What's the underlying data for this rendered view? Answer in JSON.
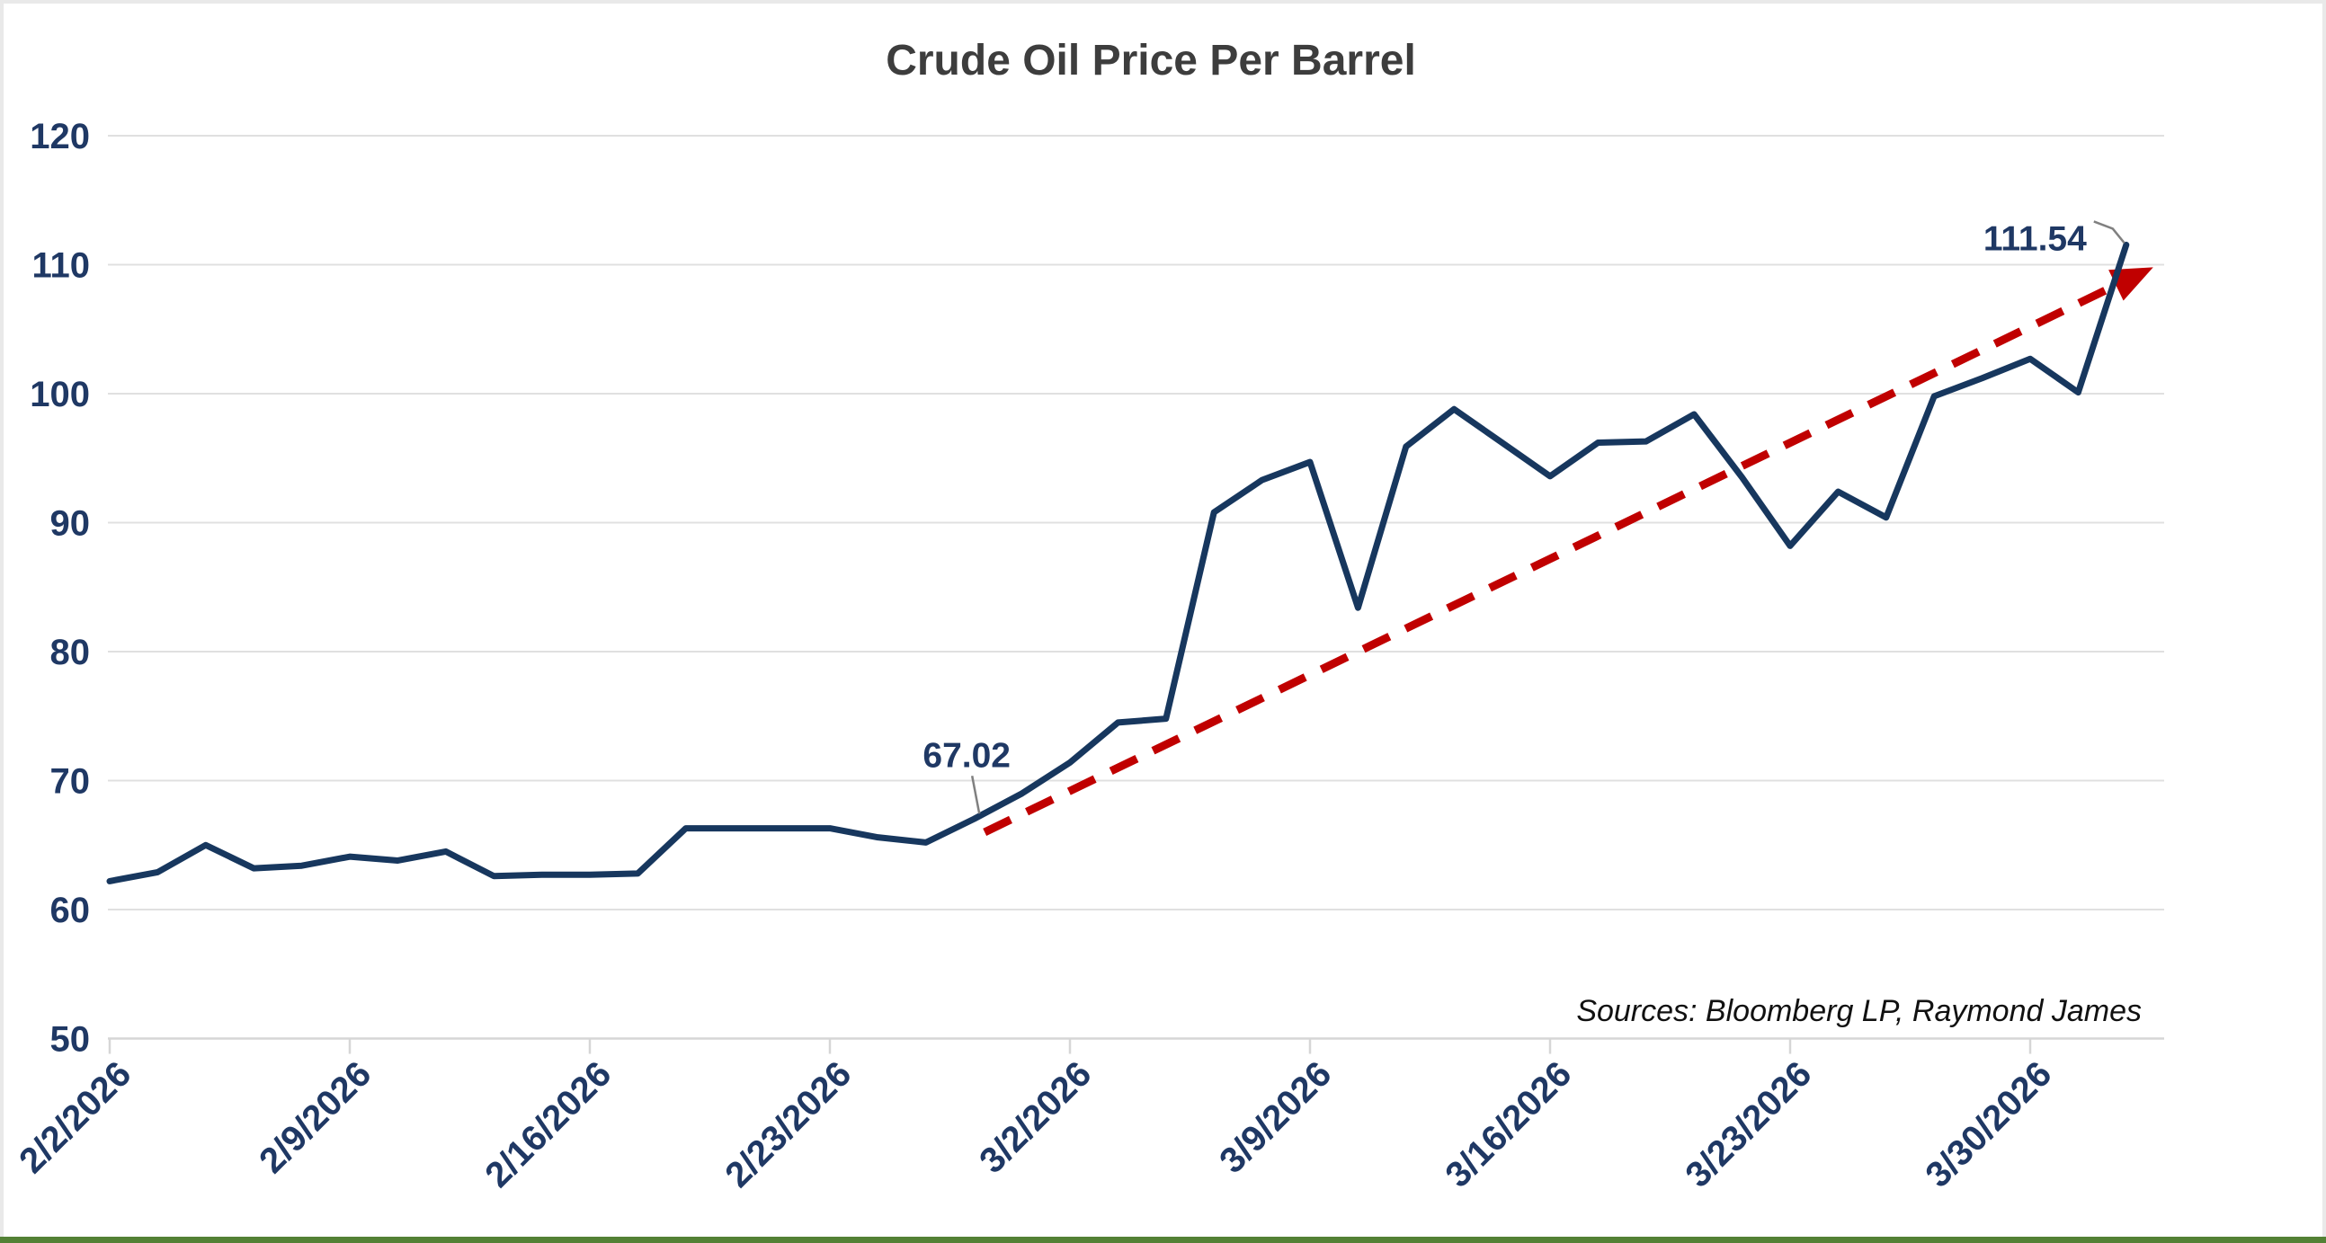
{
  "source_note": "Sources: Bloomberg LP, Raymond James",
  "colors": {
    "line": "#17375E",
    "labels": "#1F3864",
    "trend": "#C00000",
    "title": "#3d3d3d",
    "gridline": "#e0e0e0",
    "bottom_bar": "#538135"
  },
  "chart_data": {
    "type": "line",
    "title": "Crude Oil Price Per Barrel",
    "xlabel": "",
    "ylabel": "",
    "ylim": [
      50,
      120
    ],
    "ytick_interval": 10,
    "ytick_labels": [
      "50",
      "60",
      "70",
      "80",
      "90",
      "100",
      "110",
      "120"
    ],
    "grid": "horizontal",
    "legend": "none",
    "xtick_labels": [
      "2/2/2026",
      "2/9/2026",
      "2/16/2026",
      "2/23/2026",
      "3/2/2026",
      "3/9/2026",
      "3/16/2026",
      "3/23/2026",
      "3/30/2026"
    ],
    "x": [
      "2/2/2026",
      "2/3/2026",
      "2/4/2026",
      "2/5/2026",
      "2/6/2026",
      "2/9/2026",
      "2/10/2026",
      "2/11/2026",
      "2/12/2026",
      "2/13/2026",
      "2/16/2026",
      "2/17/2026",
      "2/18/2026",
      "2/19/2026",
      "2/20/2026",
      "2/23/2026",
      "2/24/2026",
      "2/25/2026",
      "2/26/2026",
      "2/27/2026",
      "3/2/2026",
      "3/3/2026",
      "3/4/2026",
      "3/5/2026",
      "3/6/2026",
      "3/9/2026",
      "3/10/2026",
      "3/11/2026",
      "3/12/2026",
      "3/13/2026",
      "3/16/2026",
      "3/17/2026",
      "3/18/2026",
      "3/19/2026",
      "3/20/2026",
      "3/23/2026",
      "3/24/2026",
      "3/25/2026",
      "3/26/2026",
      "3/27/2026",
      "3/30/2026",
      "3/31/2026",
      "4/1/2026"
    ],
    "series": [
      {
        "name": "Crude Oil Price Per Barrel",
        "values": [
          62.2,
          62.9,
          65.0,
          63.2,
          63.4,
          64.1,
          63.8,
          64.5,
          62.6,
          62.7,
          62.7,
          62.8,
          66.3,
          66.3,
          66.3,
          66.3,
          65.6,
          65.2,
          67.02,
          69.0,
          71.4,
          74.5,
          74.8,
          90.8,
          93.3,
          94.7,
          83.4,
          95.9,
          98.8,
          96.2,
          93.6,
          96.2,
          96.3,
          98.4,
          93.5,
          88.2,
          92.4,
          90.4,
          99.8,
          101.2,
          102.7,
          100.1,
          111.54
        ]
      }
    ],
    "annotations": [
      {
        "label": "67.02",
        "date": "2/26/2026",
        "value": 67.02
      },
      {
        "label": "111.54",
        "date": "4/1/2026",
        "value": 111.54
      }
    ],
    "trendline": {
      "style": "dashed-arrow",
      "color": "#C00000",
      "start": {
        "date": "2/26/2026",
        "value": 66.0
      },
      "end": {
        "date": "4/1/2026",
        "value": 109.8
      }
    }
  }
}
